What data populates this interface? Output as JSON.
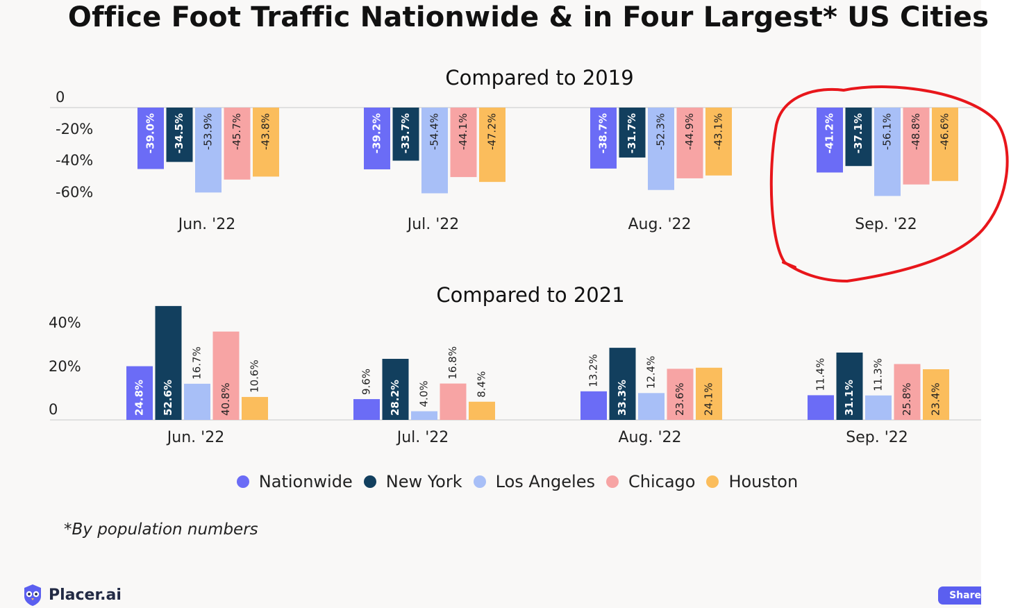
{
  "title": "Office Foot Traffic Nationwide & in Four Largest* US Cities",
  "footnote": "*By population numbers",
  "brand": "Placer.ai",
  "share_label": "Share",
  "colors": {
    "Nationwide": "#6b6cf6",
    "New York": "#123f5e",
    "Los Angeles": "#a8bff7",
    "Chicago": "#f7a4a4",
    "Houston": "#fbbd5c",
    "annotation": "#e8161b"
  },
  "chart_data": [
    {
      "type": "bar",
      "title": "Compared to 2019",
      "categories": [
        "Jun. '22",
        "Jul. '22",
        "Aug. '22",
        "Sep. '22"
      ],
      "y_ticks": [
        "0",
        "-20%",
        "-40%",
        "-60%"
      ],
      "ylim": [
        -60,
        0
      ],
      "series": [
        {
          "name": "Nationwide",
          "values": [
            -39.0,
            -39.2,
            -38.7,
            -41.2
          ],
          "labels": [
            "-39.0%",
            "-39.2%",
            "-38.7%",
            "-41.2%"
          ]
        },
        {
          "name": "New York",
          "values": [
            -34.5,
            -33.7,
            -31.7,
            -37.1
          ],
          "labels": [
            "-34.5%",
            "-33.7%",
            "-31.7%",
            "-37.1%"
          ]
        },
        {
          "name": "Los Angeles",
          "values": [
            -53.9,
            -54.4,
            -52.3,
            -56.1
          ],
          "labels": [
            "-53.9%",
            "-54.4%",
            "-52.3%",
            "-56.1%"
          ]
        },
        {
          "name": "Chicago",
          "values": [
            -45.7,
            -44.1,
            -44.9,
            -48.8
          ],
          "labels": [
            "-45.7%",
            "-44.1%",
            "-44.9%",
            "-48.8%"
          ]
        },
        {
          "name": "Houston",
          "values": [
            -43.8,
            -47.2,
            -43.1,
            -46.6
          ],
          "labels": [
            "-43.8%",
            "-47.2%",
            "-43.1%",
            "-46.6%"
          ]
        }
      ],
      "highlight": "Sep. '22"
    },
    {
      "type": "bar",
      "title": "Compared to 2021",
      "categories": [
        "Jun. '22",
        "Jul. '22",
        "Aug. '22",
        "Sep. '22"
      ],
      "y_ticks": [
        "40%",
        "20%",
        "0"
      ],
      "ylim": [
        0,
        52.6
      ],
      "series": [
        {
          "name": "Nationwide",
          "values": [
            24.8,
            9.6,
            13.2,
            11.4
          ],
          "labels": [
            "24.8%",
            "9.6%",
            "13.2%",
            "11.4%"
          ]
        },
        {
          "name": "New York",
          "values": [
            52.6,
            28.2,
            33.3,
            31.1
          ],
          "labels": [
            "52.6%",
            "28.2%",
            "33.3%",
            "31.1%"
          ]
        },
        {
          "name": "Los Angeles",
          "values": [
            16.7,
            4.0,
            12.4,
            11.3
          ],
          "labels": [
            "16.7%",
            "4.0%",
            "12.4%",
            "11.3%"
          ]
        },
        {
          "name": "Chicago",
          "values": [
            40.8,
            16.8,
            23.6,
            25.8
          ],
          "labels": [
            "40.8%",
            "16.8%",
            "23.6%",
            "25.8%"
          ]
        },
        {
          "name": "Houston",
          "values": [
            10.6,
            8.4,
            24.1,
            23.4
          ],
          "labels": [
            "10.6%",
            "8.4%",
            "24.1%",
            "23.4%"
          ]
        }
      ]
    }
  ],
  "legend": [
    {
      "label": "Nationwide",
      "color": "#6b6cf6"
    },
    {
      "label": "New York",
      "color": "#123f5e"
    },
    {
      "label": "Los Angeles",
      "color": "#a8bff7"
    },
    {
      "label": "Chicago",
      "color": "#f7a4a4"
    },
    {
      "label": "Houston",
      "color": "#fbbd5c"
    }
  ]
}
